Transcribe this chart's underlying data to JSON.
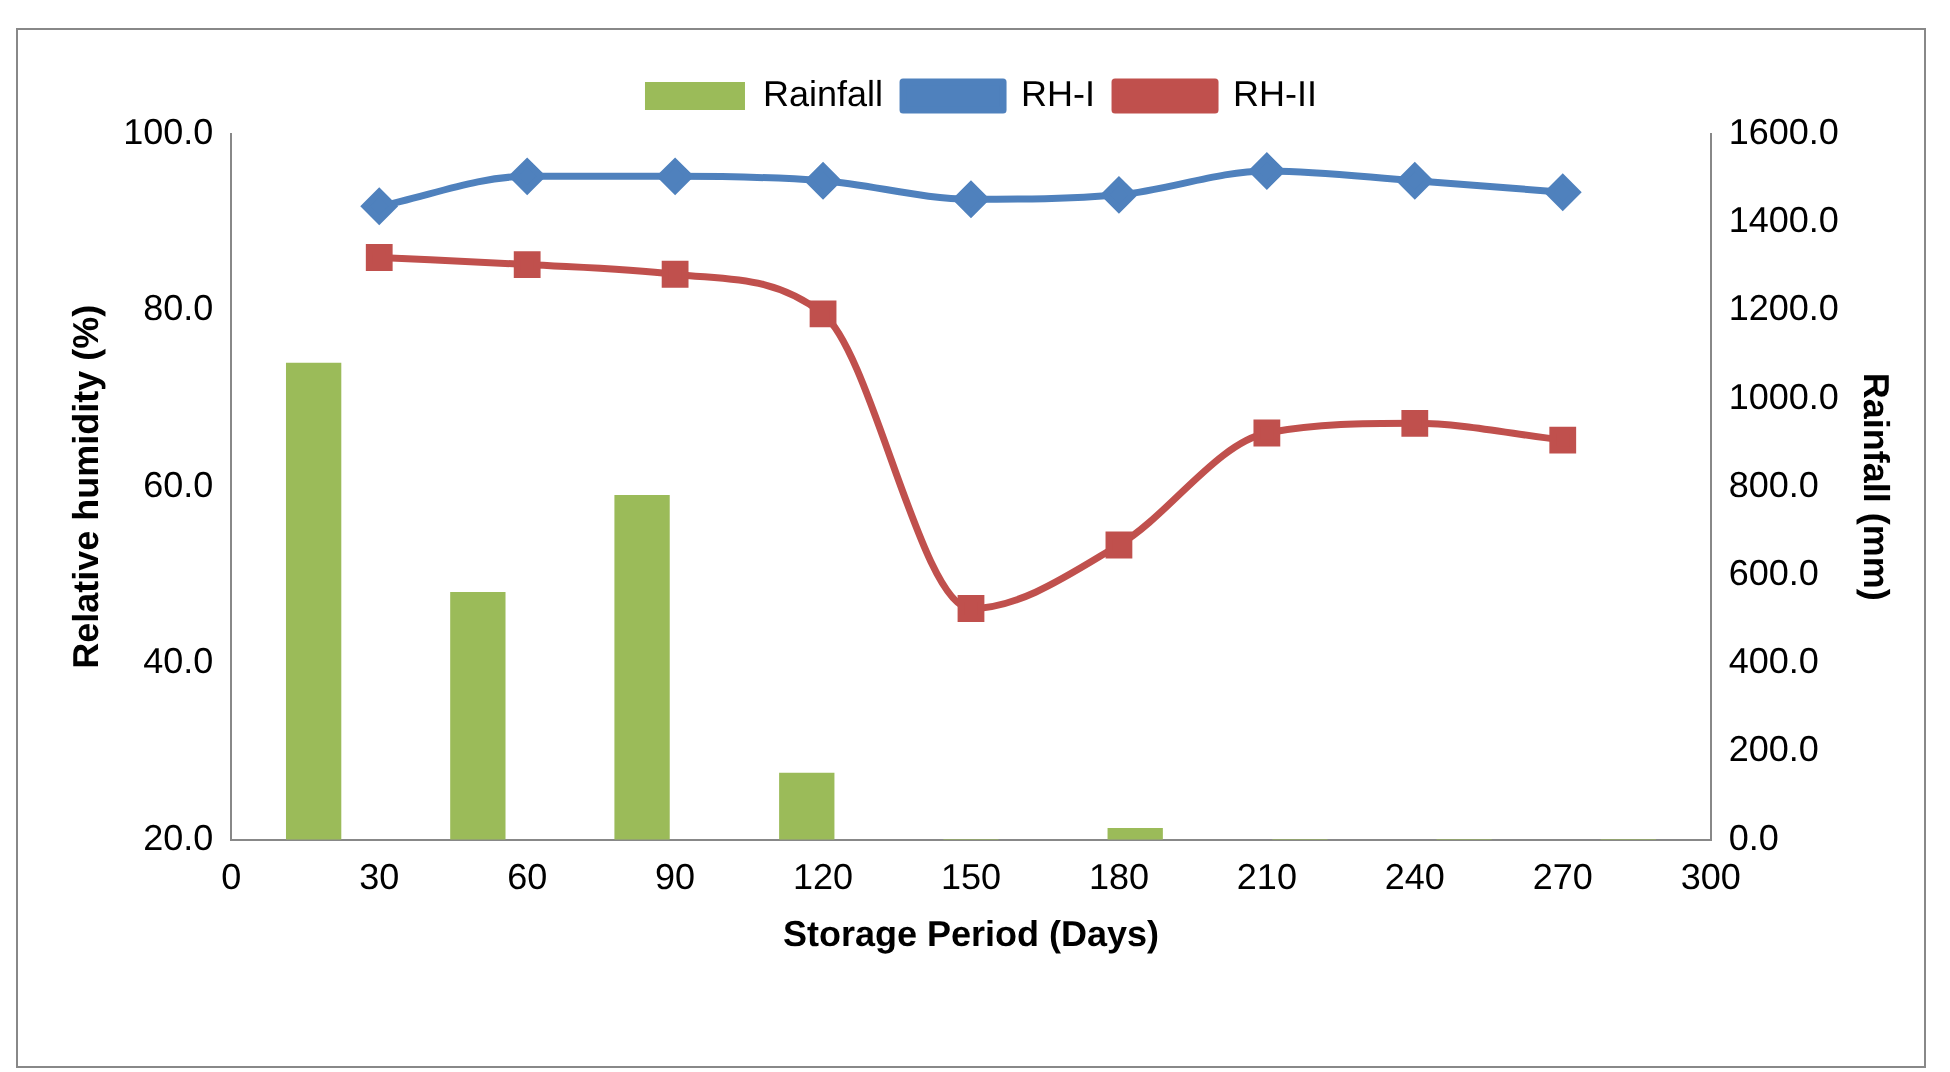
{
  "chart_data": {
    "type": "line",
    "xlabel": "Storage Period (Days)",
    "ylabel": "Relative humidity (%)",
    "y2label": "Rainfall (mm)",
    "x": [
      30,
      60,
      90,
      120,
      150,
      180,
      210,
      240,
      270
    ],
    "series": [
      {
        "name": "Rainfall",
        "type": "bar",
        "axis": "y2",
        "color": "#9bbb59",
        "x": [
          16.7,
          50,
          83.3,
          116.7,
          150,
          183.3,
          216.7,
          250,
          283.3
        ],
        "values": [
          1080,
          560,
          780,
          150,
          0,
          25,
          0,
          0,
          0
        ]
      },
      {
        "name": "RH-I",
        "color": "#4f81bd",
        "marker": "diamond",
        "values": [
          91.8,
          95.2,
          95.2,
          94.7,
          92.6,
          93.1,
          95.8,
          94.7,
          93.4
        ]
      },
      {
        "name": "RH-II",
        "color": "#c0504d",
        "marker": "square",
        "values": [
          86.0,
          85.2,
          84.1,
          79.6,
          46.2,
          53.4,
          66.1,
          67.2,
          65.3
        ]
      }
    ],
    "xlim": [
      0,
      300
    ],
    "xticks": [
      0,
      30,
      60,
      90,
      120,
      150,
      180,
      210,
      240,
      270,
      300
    ],
    "ylim": [
      20,
      100
    ],
    "yticks": [
      {
        "value": 20,
        "label": "20.0"
      },
      {
        "value": 40,
        "label": "40.0"
      },
      {
        "value": 60,
        "label": "60.0"
      },
      {
        "value": 80,
        "label": "80.0"
      },
      {
        "value": 100,
        "label": "100.0"
      }
    ],
    "y2lim": [
      0,
      1600
    ],
    "y2ticks": [
      {
        "value": 0,
        "label": "0.0"
      },
      {
        "value": 200,
        "label": "200.0"
      },
      {
        "value": 400,
        "label": "400.0"
      },
      {
        "value": 600,
        "label": "600.0"
      },
      {
        "value": 800,
        "label": "800.0"
      },
      {
        "value": 1000,
        "label": "1000.0"
      },
      {
        "value": 1200,
        "label": "1200.0"
      },
      {
        "value": 1400,
        "label": "1400.0"
      },
      {
        "value": 1600,
        "label": "1600.0"
      }
    ],
    "grid": false,
    "legend": "top"
  }
}
